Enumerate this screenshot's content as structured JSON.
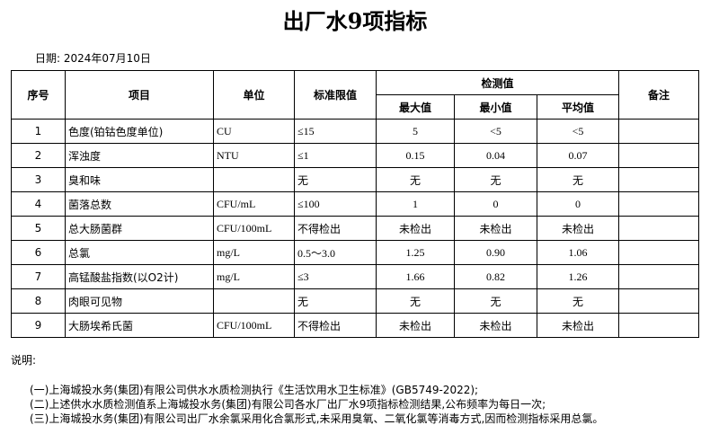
{
  "title": "出厂水9项指标",
  "date_label": "日期: 2024年07月10日",
  "headers": {
    "seq": "序号",
    "item": "项目",
    "unit": "单位",
    "limit": "标准限值",
    "measured": "检测值",
    "max": "最大值",
    "min": "最小值",
    "avg": "平均值",
    "remark": "备注"
  },
  "rows": [
    {
      "seq": "1",
      "item": "色度(铂钴色度单位)",
      "unit": "CU",
      "limit": "≤15",
      "max": "5",
      "min": "<5",
      "avg": "<5",
      "remark": ""
    },
    {
      "seq": "2",
      "item": "浑浊度",
      "unit": "NTU",
      "limit": "≤1",
      "max": "0.15",
      "min": "0.04",
      "avg": "0.07",
      "remark": ""
    },
    {
      "seq": "3",
      "item": "臭和味",
      "unit": "",
      "limit": "无",
      "max": "无",
      "min": "无",
      "avg": "无",
      "remark": ""
    },
    {
      "seq": "4",
      "item": "菌落总数",
      "unit": "CFU/mL",
      "limit": "≤100",
      "max": "1",
      "min": "0",
      "avg": "0",
      "remark": ""
    },
    {
      "seq": "5",
      "item": "总大肠菌群",
      "unit": "CFU/100mL",
      "limit": "不得检出",
      "max": "未检出",
      "min": "未检出",
      "avg": "未检出",
      "remark": ""
    },
    {
      "seq": "6",
      "item": "总氯",
      "unit": "mg/L",
      "limit": "0.5～3.0",
      "max": "1.25",
      "min": "0.90",
      "avg": "1.06",
      "remark": ""
    },
    {
      "seq": "7",
      "item": "高锰酸盐指数(以O2计)",
      "unit": "mg/L",
      "limit": "≤3",
      "max": "1.66",
      "min": "0.82",
      "avg": "1.26",
      "remark": ""
    },
    {
      "seq": "8",
      "item": "肉眼可见物",
      "unit": "",
      "limit": "无",
      "max": "无",
      "min": "无",
      "avg": "无",
      "remark": ""
    },
    {
      "seq": "9",
      "item": "大肠埃希氏菌",
      "unit": "CFU/100mL",
      "limit": "不得检出",
      "max": "未检出",
      "min": "未检出",
      "avg": "未检出",
      "remark": ""
    }
  ],
  "notes_label": "说明:",
  "notes": [
    "(一)上海城投水务(集团)有限公司供水水质检测执行《生活饮用水卫生标准》(GB5749-2022);",
    "(二)上述供水水质检测值系上海城投水务(集团)有限公司各水厂出厂水9项指标检测结果,公布频率为每日一次;",
    "(三)上海城投水务(集团)有限公司出厂水余氯采用化合氯形式,未采用臭氧、二氧化氯等消毒方式,因而检测指标采用总氯。"
  ]
}
